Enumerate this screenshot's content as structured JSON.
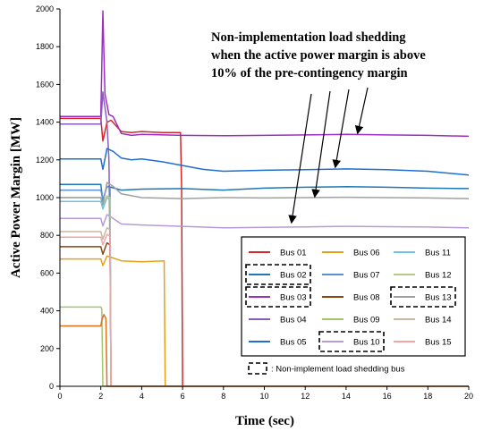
{
  "chart_data": {
    "type": "line",
    "xlabel": "Time (sec)",
    "ylabel": "Active Power Margin [MW]",
    "xlim": [
      0,
      20
    ],
    "ylim": [
      0,
      2000
    ],
    "xticks": [
      0,
      2,
      4,
      6,
      8,
      10,
      12,
      14,
      16,
      18,
      20
    ],
    "yticks": [
      0,
      200,
      400,
      600,
      800,
      1000,
      1200,
      1400,
      1600,
      1800,
      2000
    ],
    "grid": false,
    "annotation": {
      "lines": [
        "Non-implementation load shedding",
        "when the active power margin is above",
        "10% of the pre-contingency margin"
      ]
    },
    "legend_position": "bottom-right",
    "legend_note": ": Non-implement load shedding bus",
    "series": [
      {
        "name": "Bus 01",
        "color": "#d62728",
        "shed": false,
        "points": [
          [
            0,
            1420
          ],
          [
            2,
            1420
          ],
          [
            2.1,
            1300
          ],
          [
            2.3,
            1400
          ],
          [
            2.5,
            1410
          ],
          [
            3,
            1350
          ],
          [
            3.5,
            1345
          ],
          [
            4,
            1350
          ],
          [
            5,
            1345
          ],
          [
            5.9,
            1345
          ],
          [
            5.95,
            1050
          ],
          [
            6,
            0
          ],
          [
            20,
            0
          ]
        ]
      },
      {
        "name": "Bus 02",
        "color": "#1f77b4",
        "shed": true,
        "points": [
          [
            0,
            1070
          ],
          [
            2,
            1070
          ],
          [
            2.1,
            980
          ],
          [
            2.3,
            1060
          ],
          [
            2.5,
            1055
          ],
          [
            3,
            1040
          ],
          [
            4,
            1045
          ],
          [
            6,
            1048
          ],
          [
            8,
            1040
          ],
          [
            10,
            1050
          ],
          [
            12,
            1055
          ],
          [
            14,
            1058
          ],
          [
            16,
            1055
          ],
          [
            18,
            1050
          ],
          [
            20,
            1048
          ]
        ]
      },
      {
        "name": "Bus 03",
        "color": "#9b30c0",
        "shed": true,
        "points": [
          [
            0,
            1430
          ],
          [
            2,
            1430
          ],
          [
            2.1,
            1990
          ],
          [
            2.2,
            1550
          ],
          [
            2.4,
            1440
          ],
          [
            2.6,
            1430
          ],
          [
            3,
            1340
          ],
          [
            3.5,
            1330
          ],
          [
            4,
            1335
          ],
          [
            6,
            1330
          ],
          [
            8,
            1328
          ],
          [
            10,
            1330
          ],
          [
            12,
            1332
          ],
          [
            14,
            1335
          ],
          [
            16,
            1332
          ],
          [
            18,
            1330
          ],
          [
            20,
            1325
          ]
        ]
      },
      {
        "name": "Bus 04",
        "color": "#8a5cc0",
        "shed": false,
        "points": [
          [
            0,
            1390
          ],
          [
            2,
            1390
          ],
          [
            2.1,
            1560
          ],
          [
            2.3,
            1400
          ],
          [
            2.4,
            1200
          ],
          [
            2.45,
            700
          ],
          [
            2.5,
            0
          ],
          [
            20,
            0
          ]
        ]
      },
      {
        "name": "Bus 05",
        "color": "#1e6fd0",
        "shed": false,
        "points": [
          [
            0,
            1205
          ],
          [
            2,
            1205
          ],
          [
            2.1,
            1150
          ],
          [
            2.3,
            1260
          ],
          [
            2.6,
            1245
          ],
          [
            3,
            1210
          ],
          [
            3.5,
            1200
          ],
          [
            4,
            1205
          ],
          [
            5,
            1190
          ],
          [
            6,
            1170
          ],
          [
            7,
            1150
          ],
          [
            8,
            1140
          ],
          [
            10,
            1145
          ],
          [
            12,
            1148
          ],
          [
            14,
            1152
          ],
          [
            16,
            1148
          ],
          [
            18,
            1140
          ],
          [
            20,
            1120
          ]
        ]
      },
      {
        "name": "Bus 06",
        "color": "#e6a117",
        "shed": false,
        "points": [
          [
            0,
            675
          ],
          [
            2,
            675
          ],
          [
            2.1,
            640
          ],
          [
            2.3,
            690
          ],
          [
            2.6,
            680
          ],
          [
            3,
            665
          ],
          [
            4,
            660
          ],
          [
            5.1,
            665
          ],
          [
            5.15,
            0
          ],
          [
            20,
            0
          ]
        ]
      },
      {
        "name": "Bus 07",
        "color": "#5b8fd6",
        "shed": false,
        "points": [
          [
            0,
            1040
          ],
          [
            2,
            1040
          ],
          [
            2.1,
            990
          ],
          [
            2.3,
            1060
          ],
          [
            2.45,
            1050
          ],
          [
            2.5,
            0
          ],
          [
            20,
            0
          ]
        ]
      },
      {
        "name": "Bus 08",
        "color": "#8b4513",
        "shed": false,
        "points": [
          [
            0,
            740
          ],
          [
            2,
            740
          ],
          [
            2.1,
            700
          ],
          [
            2.3,
            760
          ],
          [
            2.45,
            750
          ],
          [
            2.5,
            0
          ],
          [
            20,
            0
          ]
        ]
      },
      {
        "name": "Bus 09",
        "color": "#a4c56b",
        "shed": false,
        "points": [
          [
            0,
            420
          ],
          [
            2,
            420
          ],
          [
            2.05,
            410
          ],
          [
            2.1,
            0
          ],
          [
            20,
            0
          ]
        ]
      },
      {
        "name": "Bus 10",
        "color": "#b79ad8",
        "shed": true,
        "points": [
          [
            0,
            890
          ],
          [
            2,
            890
          ],
          [
            2.1,
            850
          ],
          [
            2.3,
            910
          ],
          [
            2.6,
            890
          ],
          [
            3,
            860
          ],
          [
            4,
            855
          ],
          [
            6,
            848
          ],
          [
            8,
            840
          ],
          [
            10,
            842
          ],
          [
            12,
            845
          ],
          [
            14,
            848
          ],
          [
            16,
            846
          ],
          [
            18,
            844
          ],
          [
            20,
            840
          ]
        ]
      },
      {
        "name": "Bus 11",
        "color": "#6cc2ea",
        "shed": false,
        "points": [
          [
            0,
            980
          ],
          [
            2,
            980
          ],
          [
            2.1,
            940
          ],
          [
            2.3,
            1000
          ],
          [
            2.45,
            990
          ],
          [
            2.5,
            0
          ],
          [
            20,
            0
          ]
        ]
      },
      {
        "name": "Bus 12",
        "color": "#b5c98a",
        "shed": false,
        "points": [
          [
            0,
            1000
          ],
          [
            2,
            1000
          ],
          [
            2.1,
            960
          ],
          [
            2.3,
            1010
          ],
          [
            2.45,
            1000
          ],
          [
            2.5,
            0
          ],
          [
            20,
            0
          ]
        ]
      },
      {
        "name": "Bus 13",
        "color": "#a0a0a0",
        "shed": true,
        "points": [
          [
            0,
            1000
          ],
          [
            2,
            1000
          ],
          [
            2.1,
            960
          ],
          [
            2.3,
            1080
          ],
          [
            2.6,
            1060
          ],
          [
            3,
            1020
          ],
          [
            4,
            1000
          ],
          [
            6,
            995
          ],
          [
            8,
            1000
          ],
          [
            10,
            998
          ],
          [
            12,
            1000
          ],
          [
            14,
            1002
          ],
          [
            16,
            1000
          ],
          [
            18,
            998
          ],
          [
            20,
            995
          ]
        ]
      },
      {
        "name": "Bus 14",
        "color": "#c8b8a0",
        "shed": false,
        "points": [
          [
            0,
            820
          ],
          [
            2,
            820
          ],
          [
            2.1,
            780
          ],
          [
            2.3,
            840
          ],
          [
            2.45,
            830
          ],
          [
            2.5,
            0
          ],
          [
            20,
            0
          ]
        ]
      },
      {
        "name": "Bus 15",
        "color": "#f2a5a5",
        "shed": false,
        "points": [
          [
            0,
            790
          ],
          [
            2,
            790
          ],
          [
            2.1,
            750
          ],
          [
            2.3,
            805
          ],
          [
            2.45,
            795
          ],
          [
            2.5,
            0
          ],
          [
            20,
            0
          ]
        ]
      },
      {
        "name": "",
        "color": "#e07020",
        "shed": false,
        "points": [
          [
            0,
            320
          ],
          [
            2,
            320
          ],
          [
            2.05,
            350
          ],
          [
            2.15,
            380
          ],
          [
            2.25,
            360
          ],
          [
            2.3,
            0
          ],
          [
            20,
            0
          ]
        ]
      }
    ]
  }
}
